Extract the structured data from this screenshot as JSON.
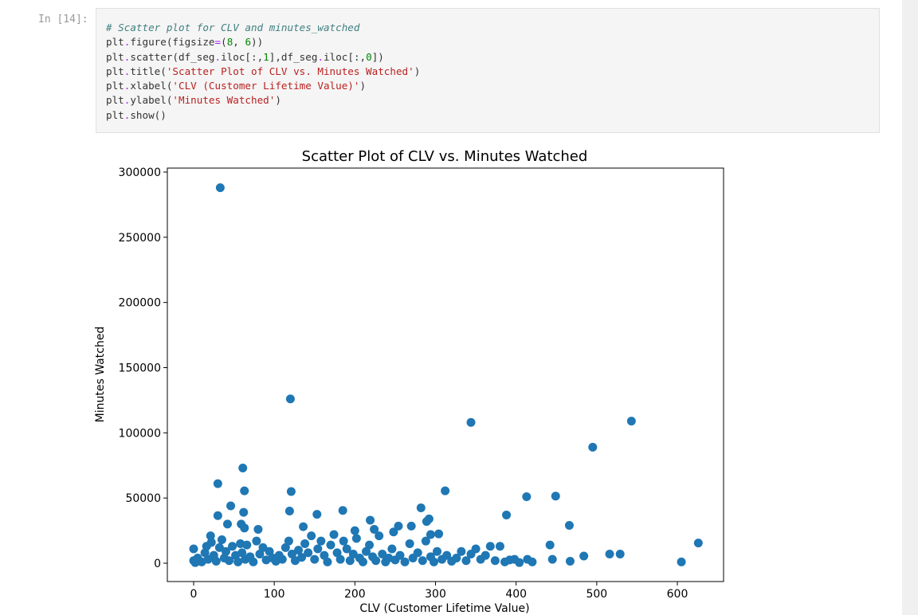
{
  "cell": {
    "prompt": "In [14]:",
    "code_lines": [
      [
        [
          "cm",
          "# Scatter plot for CLV and minutes_watched"
        ]
      ],
      [
        [
          "",
          "plt"
        ],
        [
          "op",
          "."
        ],
        [
          "",
          "figure(figsize"
        ],
        [
          "op",
          "="
        ],
        [
          "",
          "("
        ],
        [
          "num",
          "8"
        ],
        [
          "",
          ", "
        ],
        [
          "num",
          "6"
        ],
        [
          "",
          "))"
        ]
      ],
      [
        [
          "",
          "plt"
        ],
        [
          "op",
          "."
        ],
        [
          "",
          "scatter(df_seg"
        ],
        [
          "op",
          "."
        ],
        [
          "",
          "iloc[:,"
        ],
        [
          "num",
          "1"
        ],
        [
          "",
          "],df_seg"
        ],
        [
          "op",
          "."
        ],
        [
          "",
          "iloc[:,"
        ],
        [
          "num",
          "0"
        ],
        [
          "",
          "])"
        ]
      ],
      [
        [
          "",
          "plt"
        ],
        [
          "op",
          "."
        ],
        [
          "",
          "title("
        ],
        [
          "str",
          "'Scatter Plot of CLV vs. Minutes Watched'"
        ],
        [
          "",
          ")"
        ]
      ],
      [
        [
          "",
          "plt"
        ],
        [
          "op",
          "."
        ],
        [
          "",
          "xlabel("
        ],
        [
          "str",
          "'CLV (Customer Lifetime Value)'"
        ],
        [
          "",
          ")"
        ]
      ],
      [
        [
          "",
          "plt"
        ],
        [
          "op",
          "."
        ],
        [
          "",
          "ylabel("
        ],
        [
          "str",
          "'Minutes Watched'"
        ],
        [
          "",
          ")"
        ]
      ],
      [
        [
          "",
          "plt"
        ],
        [
          "op",
          "."
        ],
        [
          "",
          "show()"
        ]
      ]
    ]
  },
  "chart_data": {
    "type": "scatter",
    "title": "Scatter Plot of CLV vs. Minutes Watched",
    "xlabel": "CLV (Customer Lifetime Value)",
    "ylabel": "Minutes Watched",
    "xlim": [
      -30,
      660
    ],
    "ylim": [
      -14000,
      302000
    ],
    "xticks": [
      0,
      100,
      200,
      300,
      400,
      500,
      600
    ],
    "yticks": [
      0,
      50000,
      100000,
      150000,
      200000,
      250000,
      300000
    ],
    "grid": false,
    "color": "#1f77b4",
    "points": [
      [
        33,
        288000
      ],
      [
        120,
        126000
      ],
      [
        344,
        108000
      ],
      [
        543,
        109000
      ],
      [
        495,
        89000
      ],
      [
        61,
        73000
      ],
      [
        30,
        61000
      ],
      [
        63,
        55500
      ],
      [
        121,
        55000
      ],
      [
        312,
        55500
      ],
      [
        413,
        51000
      ],
      [
        449,
        51500
      ],
      [
        46,
        44000
      ],
      [
        185,
        40500
      ],
      [
        62,
        39000
      ],
      [
        119,
        40000
      ],
      [
        282,
        42500
      ],
      [
        30,
        36500
      ],
      [
        153,
        37500
      ],
      [
        388,
        37000
      ],
      [
        42,
        30000
      ],
      [
        59,
        30000
      ],
      [
        219,
        33000
      ],
      [
        292,
        34000
      ],
      [
        289,
        32000
      ],
      [
        466,
        29000
      ],
      [
        254,
        28500
      ],
      [
        270,
        28500
      ],
      [
        136,
        28000
      ],
      [
        80,
        26000
      ],
      [
        63,
        27000
      ],
      [
        200,
        25000
      ],
      [
        224,
        26000
      ],
      [
        248,
        24000
      ],
      [
        21,
        21000
      ],
      [
        304,
        22500
      ],
      [
        294,
        22000
      ],
      [
        442,
        14000
      ],
      [
        626,
        15500
      ],
      [
        605,
        1000
      ],
      [
        516,
        7000
      ],
      [
        529,
        7000
      ],
      [
        484,
        5500
      ],
      [
        467,
        1500
      ],
      [
        445,
        3000
      ],
      [
        0,
        11000
      ],
      [
        0,
        2000
      ],
      [
        2,
        500
      ],
      [
        5,
        4000
      ],
      [
        10,
        1000
      ],
      [
        14,
        8000
      ],
      [
        16,
        13000
      ],
      [
        18,
        3000
      ],
      [
        22,
        16000
      ],
      [
        25,
        6000
      ],
      [
        28,
        1500
      ],
      [
        32,
        12000
      ],
      [
        35,
        18000
      ],
      [
        38,
        4000
      ],
      [
        40,
        9000
      ],
      [
        44,
        2000
      ],
      [
        48,
        13000
      ],
      [
        52,
        6000
      ],
      [
        55,
        1000
      ],
      [
        58,
        15000
      ],
      [
        60,
        8000
      ],
      [
        64,
        3000
      ],
      [
        66,
        14000
      ],
      [
        70,
        5000
      ],
      [
        74,
        1000
      ],
      [
        78,
        17000
      ],
      [
        82,
        7000
      ],
      [
        86,
        12000
      ],
      [
        90,
        2500
      ],
      [
        94,
        9000
      ],
      [
        98,
        4000
      ],
      [
        102,
        1500
      ],
      [
        106,
        6000
      ],
      [
        110,
        3000
      ],
      [
        114,
        12000
      ],
      [
        118,
        17000
      ],
      [
        122,
        7000
      ],
      [
        126,
        2000
      ],
      [
        130,
        10000
      ],
      [
        134,
        4500
      ],
      [
        138,
        15000
      ],
      [
        142,
        8000
      ],
      [
        146,
        21000
      ],
      [
        150,
        3000
      ],
      [
        154,
        11000
      ],
      [
        158,
        17000
      ],
      [
        162,
        6000
      ],
      [
        166,
        1000
      ],
      [
        170,
        14000
      ],
      [
        174,
        22000
      ],
      [
        178,
        8000
      ],
      [
        182,
        3000
      ],
      [
        186,
        17000
      ],
      [
        190,
        11000
      ],
      [
        194,
        2000
      ],
      [
        198,
        7000
      ],
      [
        202,
        19000
      ],
      [
        206,
        4000
      ],
      [
        210,
        1000
      ],
      [
        214,
        9000
      ],
      [
        218,
        14000
      ],
      [
        222,
        5000
      ],
      [
        226,
        2000
      ],
      [
        230,
        21000
      ],
      [
        234,
        7000
      ],
      [
        238,
        1000
      ],
      [
        242,
        4000
      ],
      [
        246,
        11000
      ],
      [
        250,
        2500
      ],
      [
        256,
        6000
      ],
      [
        262,
        1000
      ],
      [
        268,
        15000
      ],
      [
        272,
        4000
      ],
      [
        278,
        8000
      ],
      [
        284,
        2000
      ],
      [
        288,
        17000
      ],
      [
        294,
        5000
      ],
      [
        298,
        1000
      ],
      [
        302,
        9000
      ],
      [
        308,
        3000
      ],
      [
        314,
        6000
      ],
      [
        320,
        1500
      ],
      [
        326,
        4000
      ],
      [
        332,
        9000
      ],
      [
        338,
        2000
      ],
      [
        344,
        7000
      ],
      [
        350,
        11000
      ],
      [
        356,
        3000
      ],
      [
        362,
        6000
      ],
      [
        368,
        13000
      ],
      [
        374,
        2000
      ],
      [
        380,
        13000
      ],
      [
        386,
        1000
      ],
      [
        392,
        2500
      ],
      [
        398,
        3000
      ],
      [
        404,
        500
      ],
      [
        414,
        3000
      ],
      [
        420,
        1000
      ]
    ]
  }
}
